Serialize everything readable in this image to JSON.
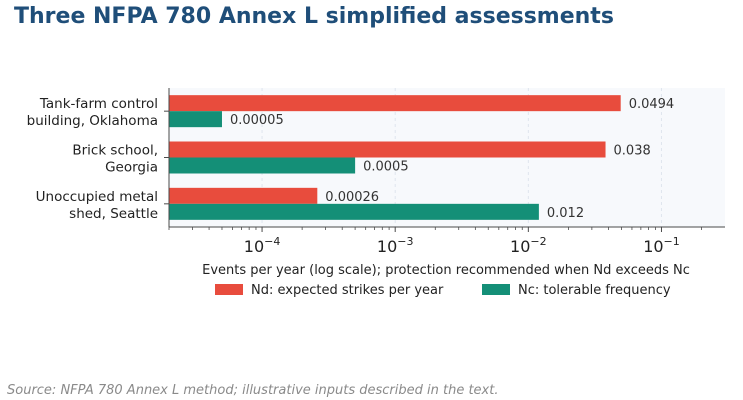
{
  "chart_data": {
    "type": "bar",
    "orientation": "horizontal",
    "title": "Three NFPA 780 Annex L simplified assessments",
    "categories": [
      [
        "Tank-farm control",
        "building, Oklahoma"
      ],
      [
        "Brick school,",
        "Georgia"
      ],
      [
        "Unoccupied metal",
        "shed, Seattle"
      ]
    ],
    "series": [
      {
        "name": "Nd: expected strikes per year",
        "color": "#e84c3d",
        "values": [
          0.0494,
          0.038,
          0.00026
        ],
        "labels": [
          "0.0494",
          "0.038",
          "0.00026"
        ]
      },
      {
        "name": "Nc: tolerable frequency",
        "color": "#148f77",
        "values": [
          5e-05,
          0.0005,
          0.012
        ],
        "labels": [
          "0.00005",
          "0.0005",
          "0.012"
        ]
      }
    ],
    "xscale": "log",
    "xlim": [
      2e-05,
      0.3
    ],
    "xticks": [
      {
        "value": 0.0001,
        "base": "10",
        "exp": "−4"
      },
      {
        "value": 0.001,
        "base": "10",
        "exp": "−3"
      },
      {
        "value": 0.01,
        "base": "10",
        "exp": "−2"
      },
      {
        "value": 0.1,
        "base": "10",
        "exp": "−1"
      }
    ],
    "xlabel": "Events per year (log scale); protection recommended when Nd exceeds Nc",
    "legend_position": "bottom-center",
    "grid": "vertical"
  },
  "footer": {
    "source": "Source: NFPA 780 Annex L method; illustrative inputs described in the text."
  }
}
